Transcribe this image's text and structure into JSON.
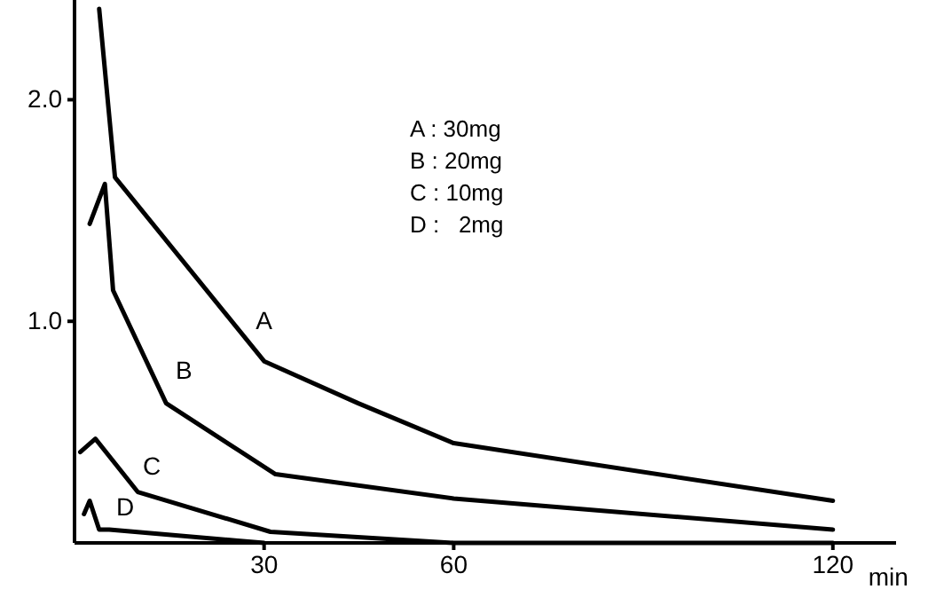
{
  "chart_data": {
    "type": "line",
    "xlabel": "min",
    "x": [
      3.9,
      6.4,
      30,
      44.9,
      60,
      120
    ],
    "series": [
      {
        "name": "A",
        "color": "#000000",
        "values": [
          2.41,
          1.65,
          0.82,
          0.63,
          0.45,
          0.19
        ]
      },
      {
        "name": "B",
        "color": "#000000",
        "x": [
          2.4,
          4.8,
          6.1,
          14.5,
          31.8,
          60,
          120
        ],
        "values": [
          1.44,
          1.62,
          1.14,
          0.63,
          0.31,
          0.2,
          0.06
        ]
      },
      {
        "name": "C",
        "color": "#000000",
        "x": [
          0.9,
          3.3,
          10,
          31,
          60,
          120
        ],
        "values": [
          0.41,
          0.47,
          0.23,
          0.05,
          0,
          0
        ]
      },
      {
        "name": "D",
        "color": "#000000",
        "x": [
          1.5,
          2.4,
          3.9,
          5.5,
          25.8,
          30
        ],
        "values": [
          0.13,
          0.19,
          0.06,
          0.06,
          0.01,
          0
        ]
      }
    ],
    "xlim": [
      0,
      130
    ],
    "ylim": [
      0,
      2.45
    ],
    "xticks": [
      30,
      60,
      120
    ],
    "yticks": [
      {
        "value": 1,
        "label": "1.0"
      },
      {
        "value": 2,
        "label": "2.0"
      }
    ],
    "grid": false,
    "marker": "none",
    "line_style": "solid",
    "annotations": [
      "A : 30mg",
      "B : 20mg",
      "C : 10mg",
      "D :   2mg"
    ]
  }
}
